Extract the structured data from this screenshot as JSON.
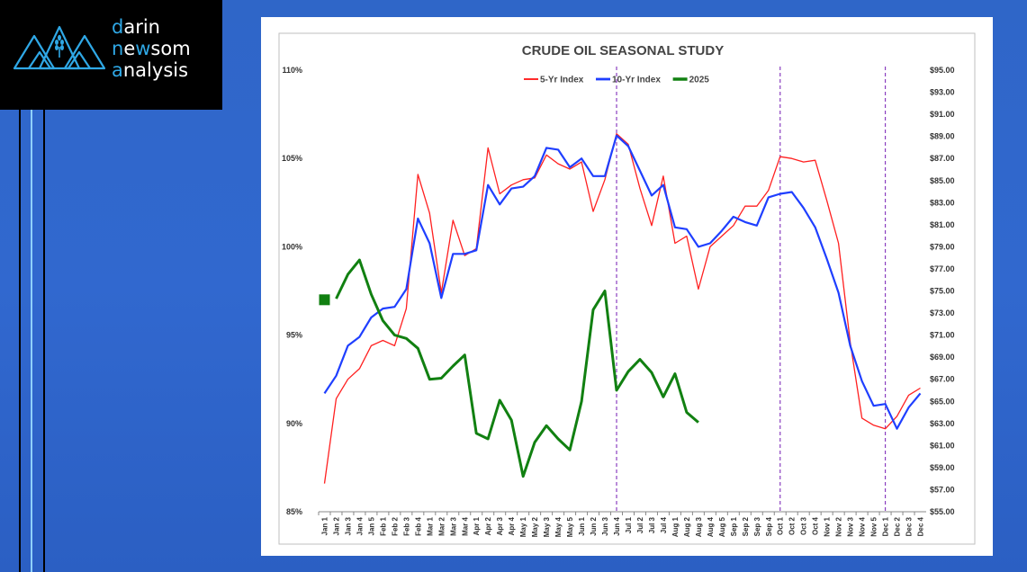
{
  "logo": {
    "line1_first": "d",
    "line1_rest": "arin",
    "line2_first": "n",
    "line2_mid": "e",
    "line2_w": "w",
    "line2_rest": "som",
    "line3_first": "a",
    "line3_rest": "nalysis"
  },
  "colors": {
    "background": "#2f66c8",
    "logo_accent": "#2fa8e6",
    "series_5yr": "#ff2020",
    "series_10yr": "#1f3fff",
    "series_2025": "#118011",
    "marker_lines": "#8a3fc0"
  },
  "chart_data": {
    "type": "line",
    "title": "CRUDE OIL SEASONAL STUDY",
    "legend_position": "top-center",
    "categories": [
      "Jan 1",
      "Jan 2",
      "Jan 3",
      "Jan 4",
      "Jan 5",
      "Feb 1",
      "Feb 2",
      "Feb 3",
      "Feb 4",
      "Mar 1",
      "Mar 2",
      "Mar 3",
      "Mar 4",
      "Apr 1",
      "Apr 2",
      "Apr 3",
      "Apr 4",
      "May 1",
      "May 2",
      "May 3",
      "May 4",
      "May 5",
      "Jun 1",
      "Jun 2",
      "Jun 3",
      "Jun 4",
      "Jul 1",
      "Jul 2",
      "Jul 3",
      "Jul 4",
      "Aug 1",
      "Aug 2",
      "Aug 3",
      "Aug 4",
      "Aug 5",
      "Sep 1",
      "Sep 2",
      "Sep 3",
      "Sep 4",
      "Oct 1",
      "Oct 2",
      "Oct 3",
      "Oct 4",
      "Nov 1",
      "Nov 2",
      "Nov 3",
      "Nov 4",
      "Nov 5",
      "Dec 1",
      "Dec 2",
      "Dec 3",
      "Dec 4"
    ],
    "y_left": {
      "min": 85,
      "max": 110,
      "ticks": [
        "85%",
        "90%",
        "95%",
        "100%",
        "105%",
        "110%"
      ],
      "tick_values": [
        85,
        90,
        95,
        100,
        105,
        110
      ]
    },
    "y_right": {
      "min": 55,
      "max": 95,
      "ticks": [
        "$55.00",
        "$57.00",
        "$59.00",
        "$61.00",
        "$63.00",
        "$65.00",
        "$67.00",
        "$69.00",
        "$71.00",
        "$73.00",
        "$75.00",
        "$77.00",
        "$79.00",
        "$81.00",
        "$83.00",
        "$85.00",
        "$87.00",
        "$89.00",
        "$91.00",
        "$93.00",
        "$95.00"
      ],
      "tick_values": [
        55,
        57,
        59,
        61,
        63,
        65,
        67,
        69,
        71,
        73,
        75,
        77,
        79,
        81,
        83,
        85,
        87,
        89,
        91,
        93,
        95
      ]
    },
    "series": [
      {
        "name": "5-Yr Index",
        "axis": "left",
        "values": [
          86.6,
          91.4,
          92.5,
          93.1,
          94.4,
          94.7,
          94.4,
          96.5,
          104.1,
          101.9,
          97.4,
          101.5,
          99.5,
          99.9,
          105.6,
          103.0,
          103.5,
          103.8,
          103.9,
          105.2,
          104.7,
          104.4,
          104.8,
          102.0,
          103.8,
          106.4,
          105.8,
          103.3,
          101.2,
          104.0,
          100.2,
          100.6,
          97.6,
          100.0,
          100.6,
          101.2,
          102.3,
          102.3,
          103.2,
          105.1,
          105.0,
          104.8,
          104.9,
          102.6,
          100.2,
          94.6,
          90.3,
          89.9,
          89.7,
          90.4,
          91.6,
          92.0
        ]
      },
      {
        "name": "10-Yr Index",
        "axis": "left",
        "values": [
          91.7,
          92.7,
          94.4,
          94.9,
          96.0,
          96.5,
          96.6,
          97.6,
          101.6,
          100.2,
          97.1,
          99.6,
          99.6,
          99.8,
          103.5,
          102.4,
          103.3,
          103.4,
          104.0,
          105.6,
          105.5,
          104.5,
          105.0,
          104.0,
          104.0,
          106.3,
          105.7,
          104.3,
          102.9,
          103.5,
          101.1,
          101.0,
          100.0,
          100.2,
          100.9,
          101.7,
          101.4,
          101.2,
          102.8,
          103.0,
          103.1,
          102.2,
          101.1,
          99.3,
          97.4,
          94.4,
          92.4,
          91.0,
          91.1,
          89.7,
          90.9,
          91.7
        ]
      },
      {
        "name": "2025",
        "axis": "right",
        "values": [
          null,
          74.3,
          76.5,
          77.8,
          74.7,
          72.3,
          71.0,
          70.7,
          69.8,
          67.0,
          67.1,
          68.2,
          69.2,
          62.1,
          61.6,
          65.1,
          63.3,
          58.2,
          61.3,
          62.8,
          61.6,
          60.6,
          65.0,
          73.3,
          75.0,
          66.0,
          67.7,
          68.8,
          67.6,
          65.4,
          67.5,
          64.0,
          63.1,
          null,
          null,
          null,
          null,
          null,
          null,
          null,
          null,
          null,
          null,
          null,
          null,
          null,
          null,
          null,
          null,
          null,
          null,
          null
        ]
      }
    ],
    "start_marker": {
      "series": "2025",
      "value": 74.2,
      "x_category": "Jan 1"
    },
    "vertical_markers": [
      "Jun 4",
      "Oct 1",
      "Dec 1"
    ],
    "grid": false
  }
}
